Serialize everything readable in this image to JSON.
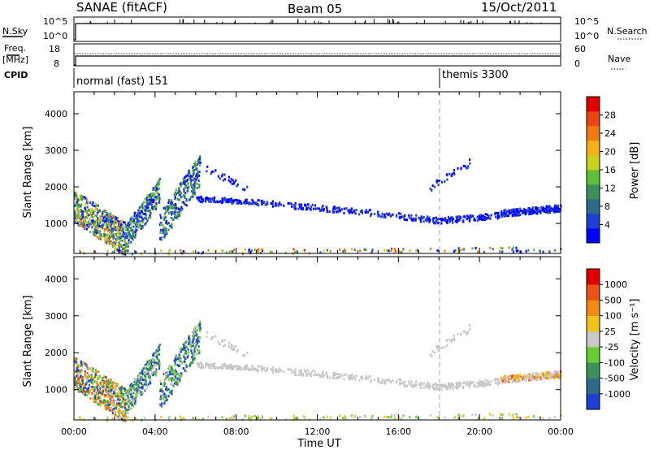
{
  "header": {
    "station": "SANAE (fitACF)",
    "beam": "Beam 05",
    "date": "15/Oct/2011"
  },
  "strips": {
    "nsky": {
      "label": "N.Sky",
      "ticks": [
        "10^5",
        "10^0"
      ]
    },
    "freq": {
      "label_line1": "Freq.",
      "label_line2": "[MHz]",
      "ticks": [
        "18",
        "8"
      ]
    },
    "cpid": {
      "label": "CPID"
    },
    "nsearch": {
      "label": "N.Search",
      "ticks": [
        "10^5",
        "10^0"
      ]
    },
    "nave": {
      "label": "Nave",
      "ticks": [
        "60",
        "0"
      ]
    },
    "modes": [
      {
        "name": "normal (fast) 151",
        "start": "00:00"
      },
      {
        "name": "themis 3300",
        "start": "18:00"
      }
    ]
  },
  "axes": {
    "ylabel": "Slant Range [km]",
    "xlabel": "Time UT",
    "yticks": [
      "1000",
      "2000",
      "3000",
      "4000"
    ],
    "xticks": [
      "00:00",
      "04:00",
      "08:00",
      "12:00",
      "16:00",
      "20:00",
      "00:00"
    ]
  },
  "colorbars": {
    "power": {
      "label": "Power [dB]",
      "ticks": [
        "4",
        "8",
        "12",
        "16",
        "20",
        "24",
        "28"
      ],
      "colors": [
        "#0000ff",
        "#1f3fd2",
        "#2d6b8a",
        "#3e8f5a",
        "#5fbf3a",
        "#c8d11e",
        "#f2b01c",
        "#f07a17",
        "#ea4515",
        "#e00000"
      ]
    },
    "velocity": {
      "label": "Velocity [m s⁻¹]",
      "ticks": [
        "1000",
        "500",
        "100",
        "25",
        "-25",
        "-100",
        "-500",
        "-1000"
      ],
      "colors": [
        "#1f3fd2",
        "#2d6b8a",
        "#3e8f5a",
        "#66cc33",
        "#c8c8c8",
        "#f2c21c",
        "#f08a17",
        "#ea5215",
        "#e00000"
      ]
    }
  },
  "chart_data": [
    {
      "type": "heatmap",
      "name": "Power",
      "xlabel": "Time UT",
      "ylabel": "Slant Range [km]",
      "xlim": [
        "00:00",
        "24:00"
      ],
      "ylim": [
        180,
        4600
      ],
      "colorbar": "Power [dB]",
      "features": [
        {
          "t_start": 0.0,
          "t_end": 2.5,
          "range_min": 500,
          "range_max": 1650,
          "power_db": "8-28"
        },
        {
          "t_start": 2.5,
          "t_end": 6.0,
          "range_min": 700,
          "range_max": 2800,
          "power_db": "4-16"
        },
        {
          "t_start": 6.0,
          "t_end": 24.0,
          "range_min": 1000,
          "range_max": 1700,
          "power_db": "4-8"
        }
      ]
    },
    {
      "type": "heatmap",
      "name": "Velocity",
      "xlabel": "Time UT",
      "ylabel": "Slant Range [km]",
      "xlim": [
        "00:00",
        "24:00"
      ],
      "ylim": [
        180,
        4600
      ],
      "colorbar": "Velocity [m s⁻¹]",
      "features": [
        {
          "t_start": 0.0,
          "t_end": 2.5,
          "range_min": 500,
          "range_max": 1650,
          "velocity": "-500 to 1000"
        },
        {
          "t_start": 2.5,
          "t_end": 6.0,
          "range_min": 700,
          "range_max": 2800,
          "velocity": "-100 to 500"
        },
        {
          "t_start": 6.0,
          "t_end": 24.0,
          "range_min": 1000,
          "range_max": 1700,
          "velocity": "-25 to 25"
        }
      ]
    }
  ]
}
